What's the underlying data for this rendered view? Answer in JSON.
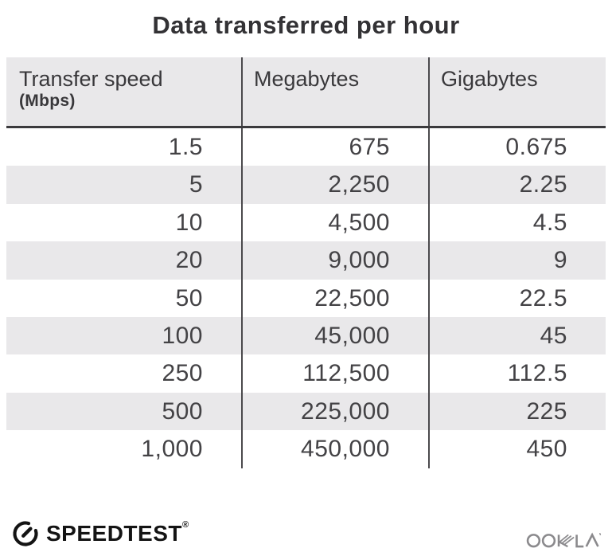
{
  "title": "Data transferred per hour",
  "table": {
    "columns": [
      {
        "title": "Transfer speed",
        "subtitle": "(Mbps)"
      },
      {
        "title": "Megabytes",
        "subtitle": ""
      },
      {
        "title": "Gigabytes",
        "subtitle": ""
      }
    ],
    "rows": [
      [
        "1.5",
        "675",
        "0.675"
      ],
      [
        "5",
        "2,250",
        "2.25"
      ],
      [
        "10",
        "4,500",
        "4.5"
      ],
      [
        "20",
        "9,000",
        "9"
      ],
      [
        "50",
        "22,500",
        "22.5"
      ],
      [
        "100",
        "45,000",
        "45"
      ],
      [
        "250",
        "112,500",
        "112.5"
      ],
      [
        "500",
        "225,000",
        "225"
      ],
      [
        "1,000",
        "450,000",
        "450"
      ]
    ]
  },
  "footer": {
    "speedtest_label": "SPEEDTEST",
    "speedtest_trademark": "®",
    "ookla_label": "OOKLA"
  },
  "colors": {
    "stripe": "#e9e8ea",
    "divider": "#4b4a4d",
    "dark_line": "#3b3a3d",
    "title": "#333235",
    "header_text": "#39383b",
    "number_text": "#434245",
    "speedtest_black": "#141414",
    "ookla_gray": "#8b8a8d"
  },
  "chart_data": {
    "type": "table",
    "title": "Data transferred per hour",
    "columns": [
      "Transfer speed (Mbps)",
      "Megabytes",
      "Gigabytes"
    ],
    "rows": [
      [
        1.5,
        675,
        0.675
      ],
      [
        5,
        2250,
        2.25
      ],
      [
        10,
        4500,
        4.5
      ],
      [
        20,
        9000,
        9
      ],
      [
        50,
        22500,
        22.5
      ],
      [
        100,
        45000,
        45
      ],
      [
        250,
        112500,
        112.5
      ],
      [
        500,
        225000,
        225
      ],
      [
        1000,
        450000,
        450
      ]
    ],
    "layout": {
      "striped": true,
      "stripe_start": "row2",
      "column_dividers": true,
      "header_background": "#e9e8ea"
    }
  }
}
